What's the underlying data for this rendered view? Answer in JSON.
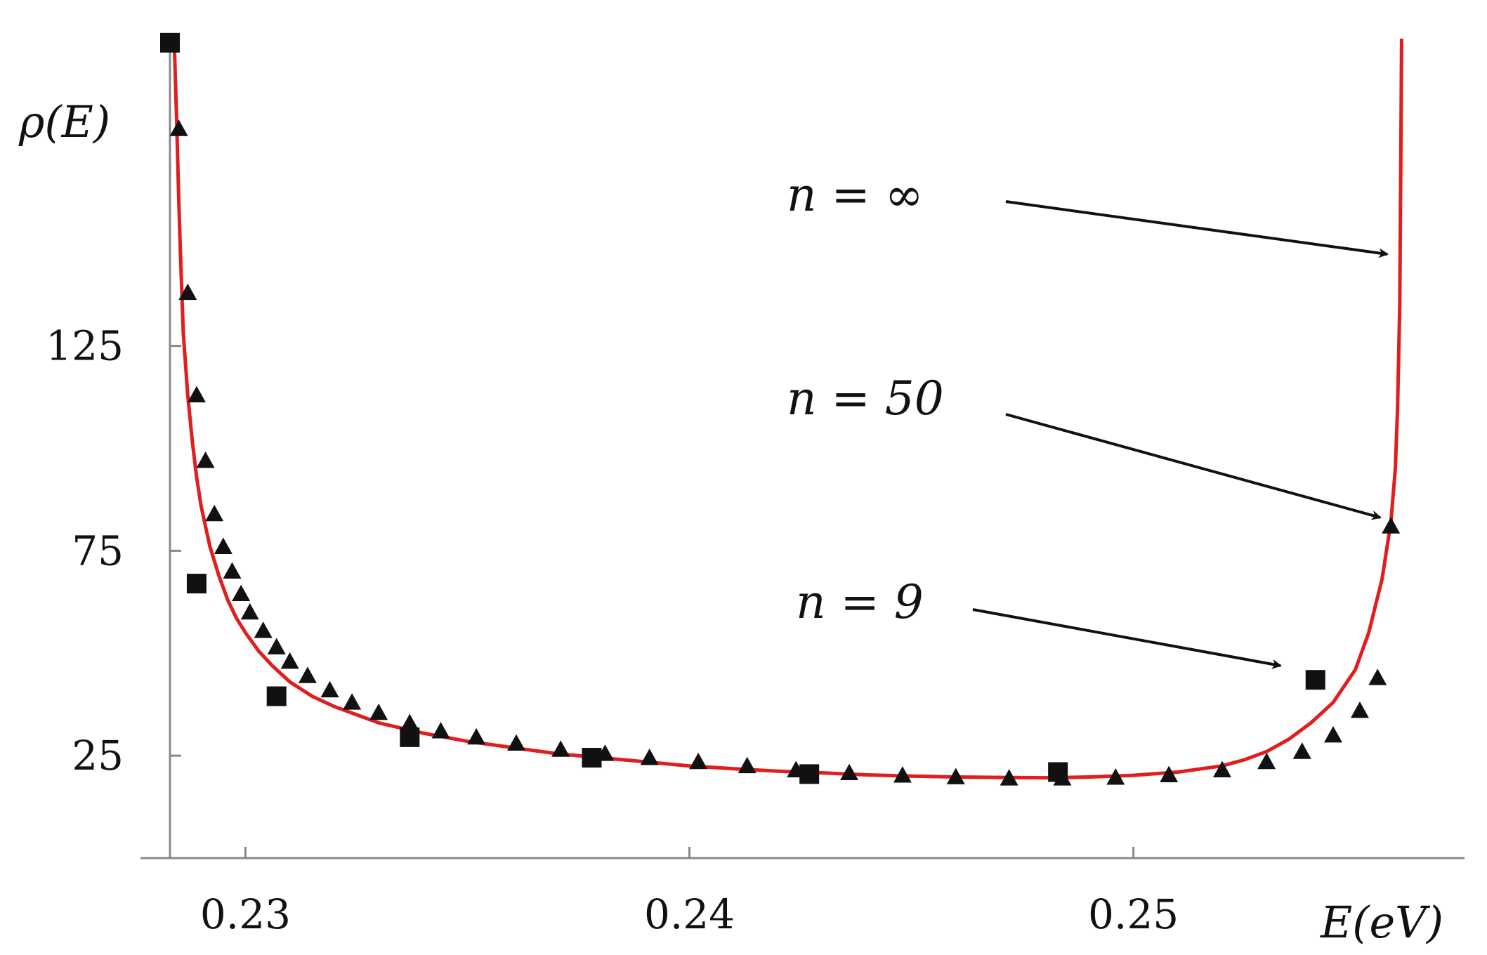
{
  "chart_data": {
    "type": "line",
    "xlabel": "E(eV)",
    "ylabel": "ρ(E)",
    "xlim": [
      0.2283,
      0.2573
    ],
    "ylim": [
      0,
      200
    ],
    "x_ticks": [
      0.23,
      0.24,
      0.25
    ],
    "x_tick_labels": [
      "0.23",
      "0.24",
      "0.25"
    ],
    "y_ticks": [
      25,
      75,
      125
    ],
    "y_tick_labels": [
      "25",
      "75",
      "125"
    ],
    "grid": false,
    "series": [
      {
        "name": "n = ∞",
        "style": "line",
        "color": "#e11d1d",
        "x": [
          0.2284,
          0.22845,
          0.2285,
          0.22855,
          0.2286,
          0.2287,
          0.2288,
          0.2289,
          0.229,
          0.2292,
          0.2294,
          0.2296,
          0.2298,
          0.23,
          0.2303,
          0.2306,
          0.231,
          0.2315,
          0.232,
          0.233,
          0.234,
          0.235,
          0.236,
          0.237,
          0.238,
          0.239,
          0.24,
          0.241,
          0.242,
          0.243,
          0.244,
          0.245,
          0.246,
          0.247,
          0.248,
          0.249,
          0.25,
          0.251,
          0.252,
          0.2525,
          0.253,
          0.2535,
          0.254,
          0.2545,
          0.255,
          0.2553,
          0.2556,
          0.2558,
          0.2559,
          0.25595,
          0.256,
          0.25602,
          0.25604
        ],
        "y": [
          198,
          180,
          160,
          143,
          128,
          113,
          102,
          93,
          86,
          76,
          69,
          63,
          58.5,
          55,
          50.5,
          47,
          43,
          39.5,
          37,
          33,
          30.5,
          28.5,
          27,
          25.5,
          24.5,
          23.5,
          22.5,
          21.8,
          21.2,
          20.8,
          20.3,
          20,
          19.8,
          19.7,
          19.6,
          19.8,
          20.2,
          21,
          22.5,
          24,
          26,
          29,
          33,
          38,
          46,
          55,
          68,
          82,
          95,
          110,
          135,
          165,
          200
        ]
      },
      {
        "name": "n = 50",
        "style": "triangle",
        "color": "#111111",
        "x": [
          0.2285,
          0.2287,
          0.2289,
          0.2291,
          0.2293,
          0.2295,
          0.2297,
          0.2299,
          0.2301,
          0.2304,
          0.2307,
          0.231,
          0.2314,
          0.2319,
          0.2324,
          0.233,
          0.2337,
          0.2344,
          0.2352,
          0.2361,
          0.2371,
          0.2381,
          0.2391,
          0.2402,
          0.2413,
          0.2424,
          0.2436,
          0.2448,
          0.246,
          0.2472,
          0.2484,
          0.2496,
          0.2508,
          0.252,
          0.253,
          0.2538,
          0.2545,
          0.2551,
          0.2555,
          0.2558
        ],
        "y": [
          178,
          138,
          113,
          97,
          84,
          76,
          70,
          64.5,
          60,
          55.5,
          51.5,
          48,
          44.5,
          41,
          38,
          35.5,
          33,
          31,
          29.5,
          28,
          26.5,
          25.5,
          24.5,
          23.5,
          22.5,
          21.5,
          20.8,
          20.2,
          19.8,
          19.5,
          19.5,
          19.7,
          20.3,
          21.5,
          23.5,
          26,
          30,
          36,
          44,
          81
        ]
      },
      {
        "name": "n = 9",
        "style": "square",
        "color": "#111111",
        "x": [
          0.2283,
          0.2289,
          0.2307,
          0.2337,
          0.2378,
          0.2427,
          0.2483,
          0.2541
        ],
        "y": [
          199,
          67,
          39.5,
          29.5,
          24.5,
          20.5,
          21,
          43.5
        ]
      }
    ],
    "annotations": [
      {
        "text": "n = ∞",
        "points_to": "n = ∞"
      },
      {
        "text": "n = 50",
        "points_to": "n = 50"
      },
      {
        "text": "n = 9",
        "points_to": "n = 9"
      }
    ]
  }
}
